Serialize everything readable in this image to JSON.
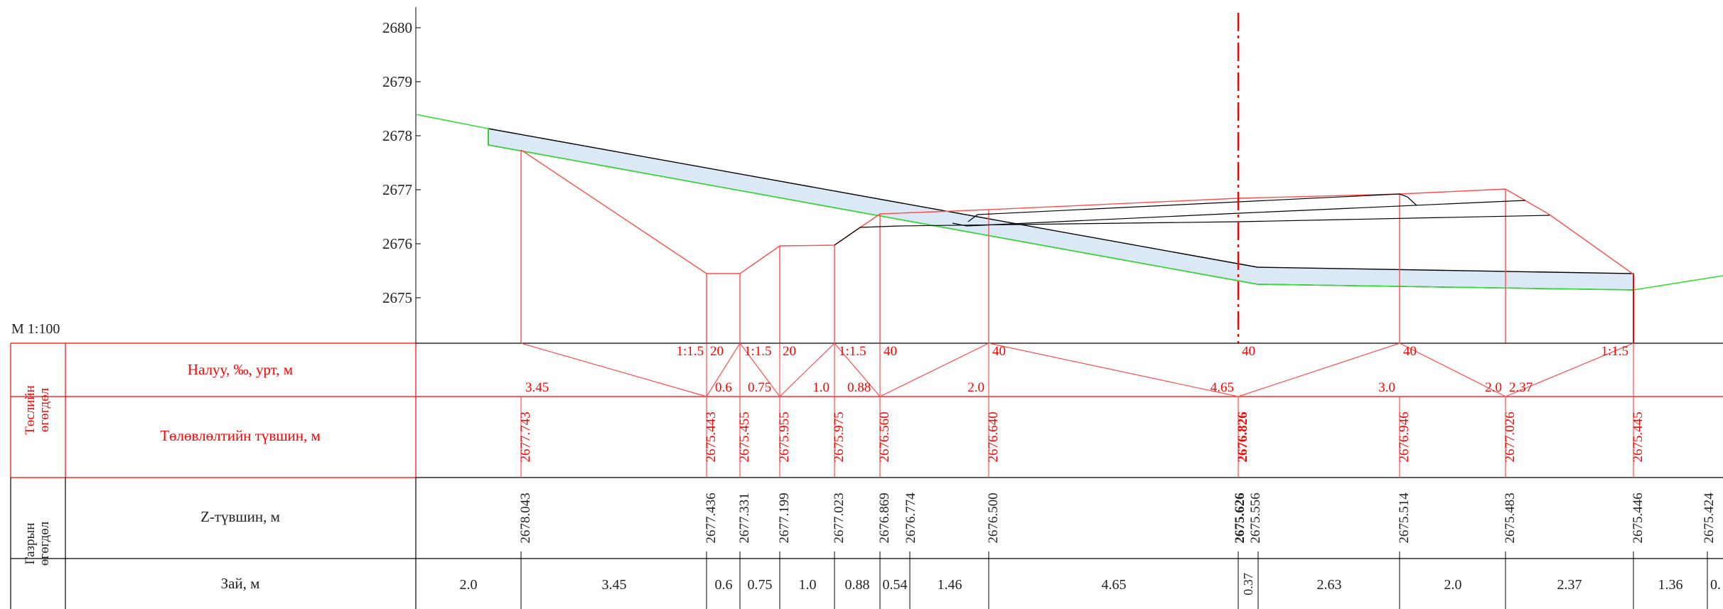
{
  "scale_label": "M 1:100",
  "y_axis": {
    "ticks": [
      "2680",
      "2679",
      "2678",
      "2677",
      "2676",
      "2675"
    ],
    "range": [
      2674,
      2681
    ]
  },
  "header": {
    "design_group": "Төслийн өгөгдөл",
    "design_group_lines": [
      "Төслийн",
      "өгөгдөл"
    ],
    "ground_group": "Газрын өгөгдөл",
    "ground_group_lines": [
      "Газрын",
      "өгөгдөл"
    ],
    "slope_row": "Налуу, ‰, урт, м",
    "design_level_row": "Төлөвлөлтийн түвшин, м",
    "ground_z_row": "Z-түвшин, м",
    "distance_row": "Зай, м"
  },
  "slope_labels": [
    {
      "text": "3.45",
      "pos": "low"
    },
    {
      "text": "1:1.5",
      "pos": "high"
    },
    {
      "text": "20",
      "pos": "high"
    },
    {
      "text": "0.6",
      "pos": "low"
    },
    {
      "text": "1:1.5",
      "pos": "high"
    },
    {
      "text": "0.75",
      "pos": "low"
    },
    {
      "text": "20",
      "pos": "high"
    },
    {
      "text": "1.0",
      "pos": "low"
    },
    {
      "text": "1:1.5",
      "pos": "high"
    },
    {
      "text": "0.88",
      "pos": "low"
    },
    {
      "text": "40",
      "pos": "high"
    },
    {
      "text": "40",
      "pos": "high"
    },
    {
      "text": "2.0",
      "pos": "low"
    },
    {
      "text": "40",
      "pos": "high"
    },
    {
      "text": "4.65",
      "pos": "low"
    },
    {
      "text": "40",
      "pos": "high"
    },
    {
      "text": "3.0",
      "pos": "low"
    },
    {
      "text": "2.0",
      "pos": "low"
    },
    {
      "text": "2.37",
      "pos": "low"
    },
    {
      "text": "1:1.5",
      "pos": "high"
    }
  ],
  "design_levels": [
    "2677.743",
    "2675.443",
    "2675.455",
    "2675.955",
    "2675.975",
    "2676.560",
    "2676.640",
    "2676.826",
    "2676.946",
    "2677.026",
    "2675.445"
  ],
  "ground_levels": [
    "2678.043",
    "2677.436",
    "2677.331",
    "2677.199",
    "2677.023",
    "2676.869",
    "2676.774",
    "2676.500",
    "2675.626",
    "2675.556",
    "2675.514",
    "2675.483",
    "2675.446",
    "2675.424"
  ],
  "distances": [
    "2.0",
    "3.45",
    "0.6",
    "0.75",
    "1.0",
    "0.88",
    "0.54",
    "1.46",
    "4.65",
    "0.37",
    "2.63",
    "2.0",
    "2.37",
    "1.36",
    "0."
  ],
  "colors": {
    "design": "#ff0000",
    "design_line": "#ff4d4d",
    "ground": "#00cc00",
    "road_fill": "#dbe8f6",
    "text": "#222222"
  }
}
